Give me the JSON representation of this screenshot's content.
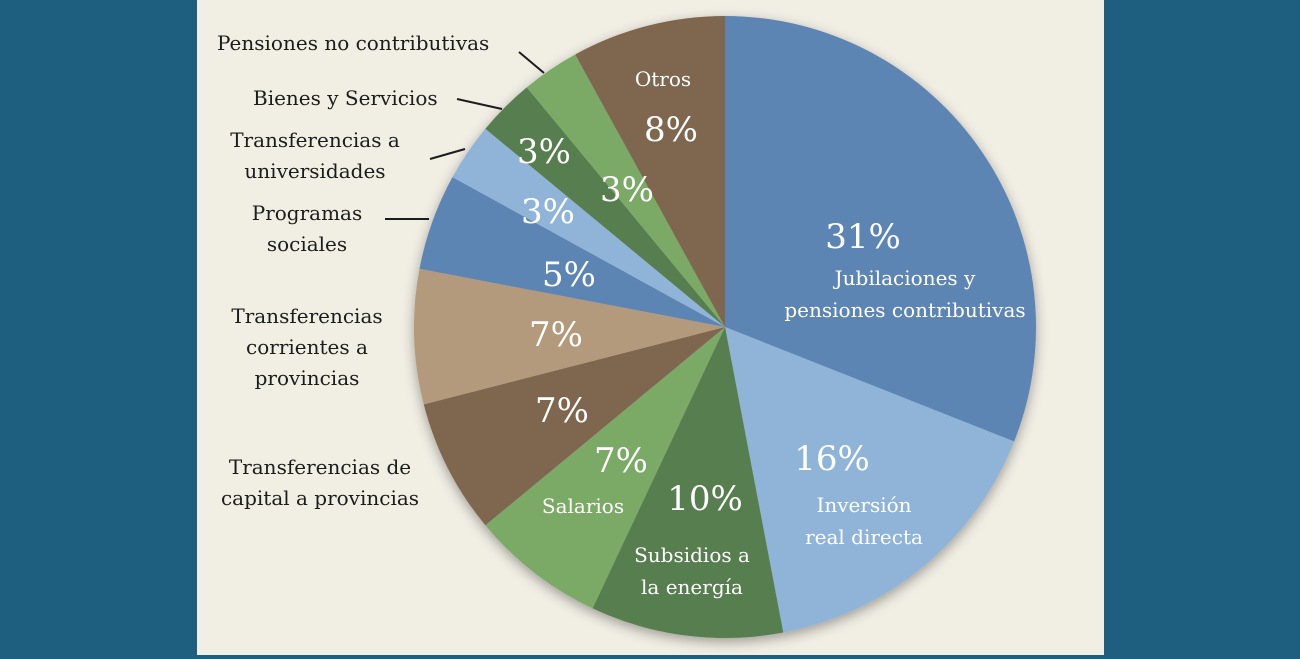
{
  "colors": {
    "background": "#1e5f80",
    "panel": "#f1eee4",
    "label_text": "#1c1c1c",
    "slice_text": "#ffffff"
  },
  "chart_data": {
    "type": "pie",
    "title": "",
    "unit": "%",
    "slices": [
      {
        "label": "Jubilaciones y pensiones contributivas",
        "value": 31,
        "value_label": "31%",
        "color": "#5d85b4"
      },
      {
        "label": "Inversión real directa",
        "value": 16,
        "value_label": "16%",
        "color": "#8fb4d8"
      },
      {
        "label": "Subsidios a la energía",
        "value": 10,
        "value_label": "10%",
        "color": "#567e4f"
      },
      {
        "label": "Salarios",
        "value": 7,
        "value_label": "7%",
        "color": "#7aaa66"
      },
      {
        "label": "Transferencias de capital a provincias",
        "value": 7,
        "value_label": "7%",
        "color": "#7e6650"
      },
      {
        "label": "Transferencias corrientes a provincias",
        "value": 7,
        "value_label": "7%",
        "color": "#b49a7c"
      },
      {
        "label": "Programas sociales",
        "value": 5,
        "value_label": "5%",
        "color": "#5d85b4"
      },
      {
        "label": "Transferencias a universidades",
        "value": 3,
        "value_label": "3%",
        "color": "#8fb4d8"
      },
      {
        "label": "Bienes y Servicios",
        "value": 3,
        "value_label": "3%",
        "color": "#567e4f"
      },
      {
        "label": "Pensiones no contributivas",
        "value": 3,
        "value_label": "3%",
        "color": "#7aaa66"
      },
      {
        "label": "Otros",
        "value": 8,
        "value_label": "8%",
        "color": "#7e6650"
      }
    ]
  }
}
